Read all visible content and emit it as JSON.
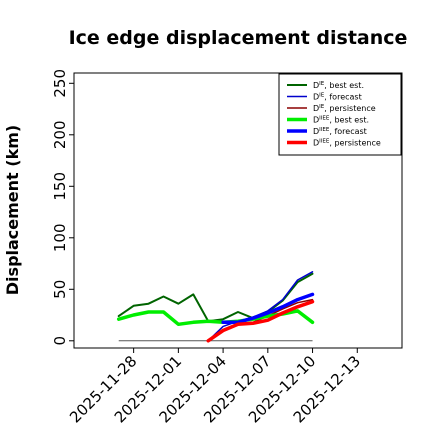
{
  "chart_data": {
    "type": "line",
    "title": "Ice edge displacement distance",
    "ylabel": "Displacement (km)",
    "xlabel": "",
    "ylim": [
      -7,
      260
    ],
    "xlim": [
      "2025-11-24",
      "2025-12-16"
    ],
    "yticks": [
      0,
      50,
      100,
      150,
      200,
      250
    ],
    "xticks": [
      {
        "label": "2025-11-28",
        "date": "2025-11-28",
        "color": "#000000"
      },
      {
        "label": "2025-12-01",
        "date": "2025-12-01",
        "color": "#000000"
      },
      {
        "label": "2025-12-04",
        "date": "2025-12-04",
        "color": "#228b22"
      },
      {
        "label": "2025-12-07",
        "date": "2025-12-07",
        "color": "#000000"
      },
      {
        "label": "2025-12-10",
        "date": "2025-12-10",
        "color": "#000000"
      },
      {
        "label": "2025-12-13",
        "date": "2025-12-13",
        "color": "#000000"
      }
    ],
    "legend_position": "top-right",
    "grid": false,
    "series": [
      {
        "name": "D^IE, best est.",
        "legend_main": "D",
        "legend_sup": "IE",
        "legend_rest": ", best est.",
        "color": "#006400",
        "width": 2,
        "x": [
          "2025-11-27",
          "2025-11-28",
          "2025-11-29",
          "2025-11-30",
          "2025-12-01",
          "2025-12-02",
          "2025-12-03",
          "2025-12-04",
          "2025-12-05",
          "2025-12-06",
          "2025-12-07",
          "2025-12-08",
          "2025-12-09",
          "2025-12-10"
        ],
        "y": [
          24,
          34,
          36,
          43,
          36,
          45,
          19,
          21,
          28,
          22,
          28,
          39,
          57,
          65
        ]
      },
      {
        "name": "D^IE, forecast",
        "legend_main": "D",
        "legend_sup": "IE",
        "legend_rest": ", forecast",
        "color": "#0000cc",
        "width": 1.5,
        "x": [
          "2025-12-03",
          "2025-12-04",
          "2025-12-05",
          "2025-12-06",
          "2025-12-07",
          "2025-12-08",
          "2025-12-09",
          "2025-12-10"
        ],
        "y": [
          0,
          14,
          19,
          23,
          29,
          40,
          59,
          67
        ]
      },
      {
        "name": "D^IE, persistence",
        "legend_main": "D",
        "legend_sup": "IE",
        "legend_rest": ", persistence",
        "color": "#8b0000",
        "width": 1.5,
        "x": [
          "2025-12-03",
          "2025-12-04",
          "2025-12-05",
          "2025-12-06",
          "2025-12-07",
          "2025-12-08",
          "2025-12-09",
          "2025-12-10"
        ],
        "y": [
          0,
          11,
          16,
          18,
          24,
          31,
          37,
          40
        ]
      },
      {
        "name": "D^IIEE, best est.",
        "legend_main": "D",
        "legend_sup": "IIEE",
        "legend_rest": ", best est.",
        "color": "#00ee00",
        "width": 3.5,
        "x": [
          "2025-11-27",
          "2025-11-28",
          "2025-11-29",
          "2025-11-30",
          "2025-12-01",
          "2025-12-02",
          "2025-12-03",
          "2025-12-04",
          "2025-12-05",
          "2025-12-06",
          "2025-12-07",
          "2025-12-08",
          "2025-12-09",
          "2025-12-10"
        ],
        "y": [
          21,
          25,
          28,
          28,
          16,
          18,
          19,
          18,
          19,
          21,
          24,
          26,
          29,
          18
        ]
      },
      {
        "name": "D^IIEE, forecast",
        "legend_main": "D",
        "legend_sup": "IIEE",
        "legend_rest": ", forecast",
        "color": "#0000ff",
        "width": 3.5,
        "x": [
          "2025-12-04",
          "2025-12-05",
          "2025-12-06",
          "2025-12-07",
          "2025-12-08",
          "2025-12-09",
          "2025-12-10"
        ],
        "y": [
          18,
          18,
          22,
          27,
          33,
          40,
          45
        ]
      },
      {
        "name": "D^IIEE, persistence",
        "legend_main": "D",
        "legend_sup": "IIEE",
        "legend_rest": ", persistence",
        "color": "#ff0000",
        "width": 3.5,
        "x": [
          "2025-12-03",
          "2025-12-04",
          "2025-12-05",
          "2025-12-06",
          "2025-12-07",
          "2025-12-08",
          "2025-12-09",
          "2025-12-10"
        ],
        "y": [
          0,
          10,
          16,
          17,
          20,
          27,
          33,
          38
        ]
      }
    ],
    "reference_line": {
      "color": "#555555",
      "x": [
        "2025-11-27",
        "2025-12-10"
      ],
      "y": [
        0,
        0
      ]
    }
  }
}
